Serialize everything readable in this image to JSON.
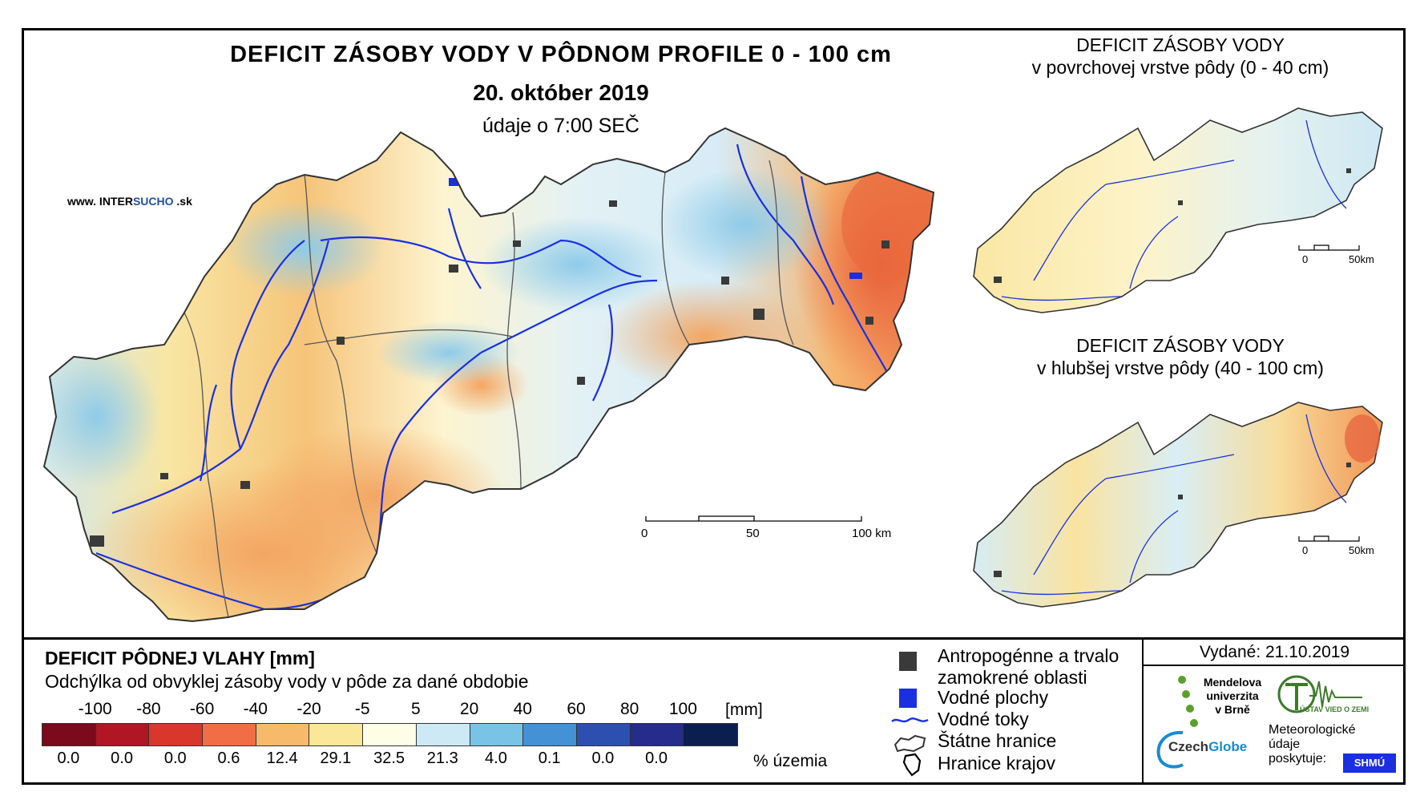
{
  "map": {
    "title": "DEFICIT ZÁSOBY VODY V PÔDNOM PROFILE 0 - 100 cm",
    "date": "20. október 2019",
    "time": "údaje o 7:00 SEČ",
    "site_prefix": "www. INTER",
    "site_accent": "SUCHO",
    "site_suffix": " .sk",
    "scale": {
      "zero": "0",
      "mid": "50",
      "end": "100 km"
    }
  },
  "inset_top": {
    "title_line1": "DEFICIT ZÁSOBY VODY",
    "title_line2": "v povrchovej vrstve pôdy (0 - 40 cm)",
    "scale_zero": "0",
    "scale_end": "50km"
  },
  "inset_bottom": {
    "title_line1": "DEFICIT ZÁSOBY VODY",
    "title_line2": "v hlubšej vrstve pôdy (40 - 100 cm)",
    "scale_zero": "0",
    "scale_end": "50km"
  },
  "legend": {
    "title": "DEFICIT PÔDNEJ VLAHY [mm]",
    "subtitle": "Odchýlka od obvyklej zásoby vody v pôde za dané obdobie",
    "thresholds": [
      "-100",
      "-80",
      "-60",
      "-40",
      "-20",
      "-5",
      "5",
      "20",
      "40",
      "60",
      "80",
      "100"
    ],
    "unit": "[mm]",
    "bin_colors": [
      "#7a0a1c",
      "#b01623",
      "#d9362c",
      "#f06d45",
      "#f7ba6b",
      "#fbe79a",
      "#fefde6",
      "#cce9f5",
      "#79c3e6",
      "#4591d6",
      "#2c4fb0",
      "#262c8c",
      "#0a1f4f"
    ],
    "percentages": [
      "0.0",
      "0.0",
      "0.0",
      "0.6",
      "12.4",
      "29.1",
      "32.5",
      "21.3",
      "4.0",
      "0.1",
      "0.0",
      "0.0"
    ],
    "pct_label": "% územia"
  },
  "symbols": {
    "anthropo_line1": "Antropogénne a trvalo",
    "anthropo_line2": "zamokrené oblasti",
    "water_bodies": "Vodné plochy",
    "rivers": "Vodné toky",
    "state_border": "Štátne hranice",
    "region_border": "Hranice krajov"
  },
  "info": {
    "issued": "Vydané: 21.10.2019",
    "mendel_1": "Mendelova",
    "mendel_2": "univerzita",
    "mendel_3": "v Brně",
    "czechglobe_a": "Czech",
    "czechglobe_b": "Globe",
    "meteo_1": "Meteorologické",
    "meteo_2": "údaje",
    "meteo_3": "poskytuje:",
    "uvgz": "ÚSTAV VIED O ZEMI",
    "shmu": "SHMÚ"
  },
  "colors": {
    "river": "#1a2fe0",
    "water": "#1a2fe0",
    "anthropo": "#3a3a3a",
    "mendel_green": "#5aa02c"
  }
}
